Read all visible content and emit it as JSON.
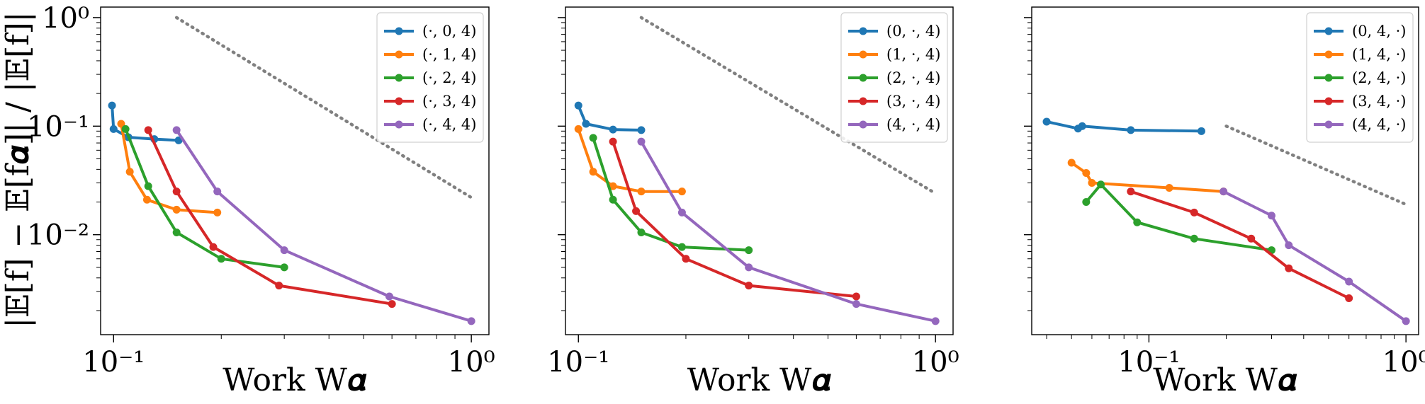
{
  "figure": {
    "ylabel": "|𝔼[f] − 𝔼[f𝜶]| / |𝔼[f]|",
    "xlabel": "Work W𝜶"
  },
  "colors": {
    "blue": "#1f77b4",
    "orange": "#ff7f0e",
    "green": "#2ca02c",
    "red": "#d62728",
    "purple": "#9467bd",
    "reference": "#808080"
  },
  "chart_data": [
    {
      "type": "line",
      "xscale": "log",
      "yscale": "log",
      "xlim": [
        0.092,
        1.12
      ],
      "ylim": [
        0.0012,
        1.25
      ],
      "xticks": [
        {
          "value": 0.1,
          "label": "10⁻¹"
        },
        {
          "value": 1,
          "label": "10⁰"
        }
      ],
      "yticks": [
        {
          "value": 0.01,
          "label": "10⁻²"
        },
        {
          "value": 0.1,
          "label": "10⁻¹"
        },
        {
          "value": 1,
          "label": "10⁰"
        }
      ],
      "xlabel": "Work W𝜶",
      "ylabel": "|𝔼[f] − 𝔼[f𝜶]| / |𝔼[f]|",
      "legend_position": "top-right",
      "reference_line": {
        "style": "dotted",
        "x": [
          0.15,
          1.0
        ],
        "y": [
          1.0,
          0.022
        ]
      },
      "series": [
        {
          "name": "(·, 0, 4)",
          "color": "blue",
          "x": [
            0.099,
            0.1,
            0.11,
            0.13,
            0.152
          ],
          "y": [
            0.155,
            0.094,
            0.079,
            0.076,
            0.074
          ]
        },
        {
          "name": "(·, 1, 4)",
          "color": "orange",
          "x": [
            0.105,
            0.111,
            0.124,
            0.15,
            0.195
          ],
          "y": [
            0.105,
            0.038,
            0.021,
            0.017,
            0.016
          ]
        },
        {
          "name": "(·, 2, 4)",
          "color": "green",
          "x": [
            0.108,
            0.125,
            0.15,
            0.2,
            0.3
          ],
          "y": [
            0.094,
            0.028,
            0.0105,
            0.006,
            0.005
          ]
        },
        {
          "name": "(·, 3, 4)",
          "color": "red",
          "x": [
            0.125,
            0.15,
            0.19,
            0.29,
            0.6
          ],
          "y": [
            0.092,
            0.025,
            0.0077,
            0.0034,
            0.0023
          ]
        },
        {
          "name": "(·, 4, 4)",
          "color": "purple",
          "x": [
            0.15,
            0.195,
            0.3,
            0.59,
            1.0
          ],
          "y": [
            0.092,
            0.025,
            0.0072,
            0.0027,
            0.0016
          ]
        }
      ]
    },
    {
      "type": "line",
      "xscale": "log",
      "yscale": "log",
      "xlim": [
        0.092,
        1.12
      ],
      "ylim": [
        0.0012,
        1.25
      ],
      "xticks": [
        {
          "value": 0.1,
          "label": "10⁻¹"
        },
        {
          "value": 1,
          "label": "10⁰"
        }
      ],
      "yticks": [],
      "xlabel": "Work W𝜶",
      "ylabel": "",
      "legend_position": "top-right",
      "reference_line": {
        "style": "dotted",
        "x": [
          0.15,
          1.0
        ],
        "y": [
          1.0,
          0.024
        ]
      },
      "series": [
        {
          "name": "(0, ·, 4)",
          "color": "blue",
          "x": [
            0.1,
            0.105,
            0.125,
            0.15
          ],
          "y": [
            0.155,
            0.105,
            0.093,
            0.092
          ]
        },
        {
          "name": "(1, ·, 4)",
          "color": "orange",
          "x": [
            0.1,
            0.11,
            0.125,
            0.15,
            0.195
          ],
          "y": [
            0.094,
            0.038,
            0.028,
            0.025,
            0.025
          ]
        },
        {
          "name": "(2, ·, 4)",
          "color": "green",
          "x": [
            0.11,
            0.125,
            0.15,
            0.195,
            0.3
          ],
          "y": [
            0.078,
            0.021,
            0.0105,
            0.0077,
            0.0072
          ]
        },
        {
          "name": "(3, ·, 4)",
          "color": "red",
          "x": [
            0.125,
            0.145,
            0.2,
            0.3,
            0.6
          ],
          "y": [
            0.072,
            0.0165,
            0.006,
            0.0034,
            0.0027
          ]
        },
        {
          "name": "(4, ·, 4)",
          "color": "purple",
          "x": [
            0.15,
            0.195,
            0.3,
            0.6,
            1.0
          ],
          "y": [
            0.072,
            0.016,
            0.005,
            0.0023,
            0.0016
          ]
        }
      ]
    },
    {
      "type": "line",
      "xscale": "log",
      "yscale": "log",
      "xlim": [
        0.035,
        1.12
      ],
      "ylim": [
        0.0012,
        1.25
      ],
      "xticks": [
        {
          "value": 0.1,
          "label": "10⁻¹"
        },
        {
          "value": 1,
          "label": "10⁰"
        }
      ],
      "yticks": [],
      "xlabel": "Work W𝜶",
      "ylabel": "",
      "legend_position": "top-right",
      "reference_line": {
        "style": "dotted",
        "x": [
          0.2,
          1.0
        ],
        "y": [
          0.1,
          0.019
        ]
      },
      "series": [
        {
          "name": "(0, 4, ·)",
          "color": "blue",
          "x": [
            0.04,
            0.053,
            0.055,
            0.085,
            0.16
          ],
          "y": [
            0.11,
            0.095,
            0.1,
            0.092,
            0.09
          ]
        },
        {
          "name": "(1, 4, ·)",
          "color": "orange",
          "x": [
            0.05,
            0.057,
            0.06,
            0.12,
            0.195
          ],
          "y": [
            0.046,
            0.037,
            0.03,
            0.027,
            0.025
          ]
        },
        {
          "name": "(2, 4, ·)",
          "color": "green",
          "x": [
            0.057,
            0.065,
            0.09,
            0.15,
            0.3
          ],
          "y": [
            0.02,
            0.029,
            0.013,
            0.0092,
            0.0072
          ]
        },
        {
          "name": "(3, 4, ·)",
          "color": "red",
          "x": [
            0.085,
            0.15,
            0.25,
            0.35,
            0.6
          ],
          "y": [
            0.025,
            0.016,
            0.0092,
            0.0049,
            0.0026
          ]
        },
        {
          "name": "(4, 4, ·)",
          "color": "purple",
          "x": [
            0.195,
            0.3,
            0.35,
            0.6,
            1.0
          ],
          "y": [
            0.025,
            0.015,
            0.008,
            0.0037,
            0.0016
          ]
        }
      ]
    }
  ]
}
